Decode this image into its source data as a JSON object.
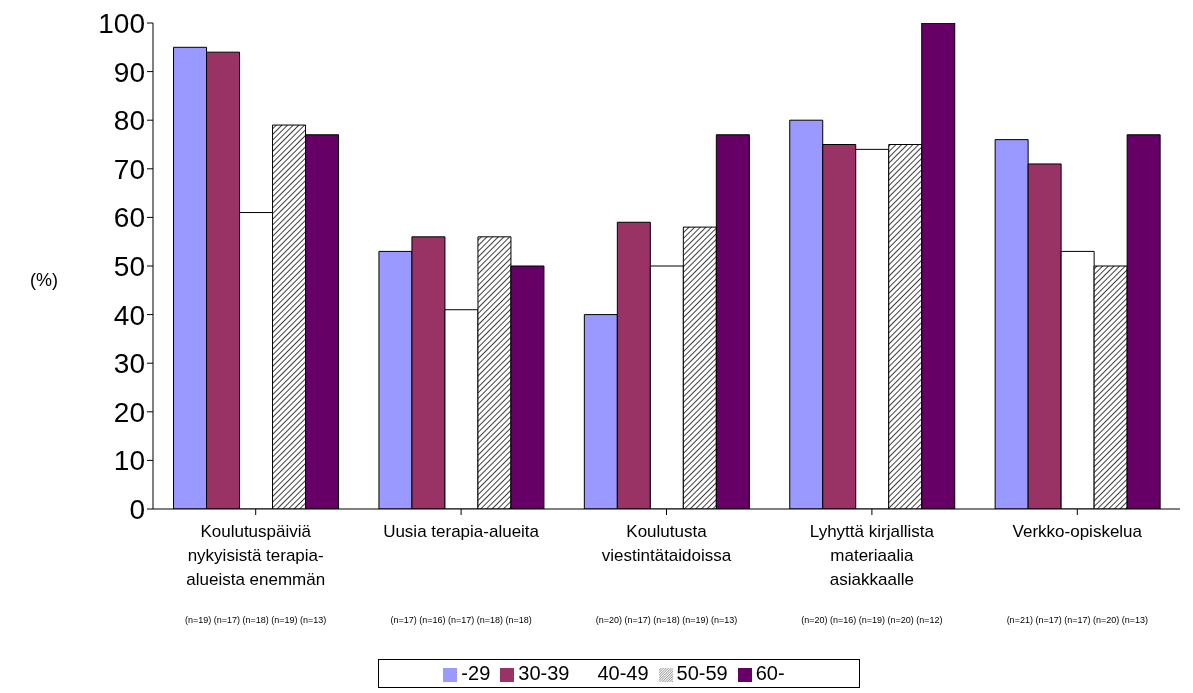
{
  "chart_data": {
    "type": "bar",
    "ylabel": "(%)",
    "categories": [
      "Koulutuspäiviä nykyisistä terapia-alueista enemmän",
      "Uusia terapia-alueita",
      "Koulutusta viestintätaidoissa",
      "Lyhyttä kirjallista materiaalia asiakkaalle",
      "Verkko-opiskelua"
    ],
    "series": [
      {
        "name": "-29",
        "color": "#9999ff",
        "values": [
          95,
          53,
          40,
          80,
          76
        ]
      },
      {
        "name": "30-39",
        "color": "#993366",
        "values": [
          94,
          56,
          59,
          75,
          71
        ]
      },
      {
        "name": "40-49",
        "color": "#ffffff",
        "values": [
          61,
          41,
          50,
          74,
          53
        ]
      },
      {
        "name": "50-59",
        "color": "#000000",
        "values": [
          79,
          56,
          58,
          75,
          50
        ]
      },
      {
        "name": "60-",
        "color": "#660066",
        "values": [
          77,
          50,
          77,
          100,
          77
        ]
      }
    ],
    "ylim": [
      0,
      100
    ],
    "yticks": [
      0,
      10,
      20,
      30,
      40,
      50,
      60,
      70,
      80,
      90,
      100
    ],
    "annotations": [
      "(n=19) (n=17) (n=18) (n=19) (n=13)",
      "(n=17) (n=16) (n=17) (n=18) (n=18)",
      "(n=20) (n=17) (n=18) (n=19) (n=13)",
      "(n=20) (n=16) (n=19) (n=20) (n=12)",
      "(n=21) (n=17) (n=17) (n=20) (n=13)"
    ],
    "legend": "bottom",
    "grid": false
  }
}
